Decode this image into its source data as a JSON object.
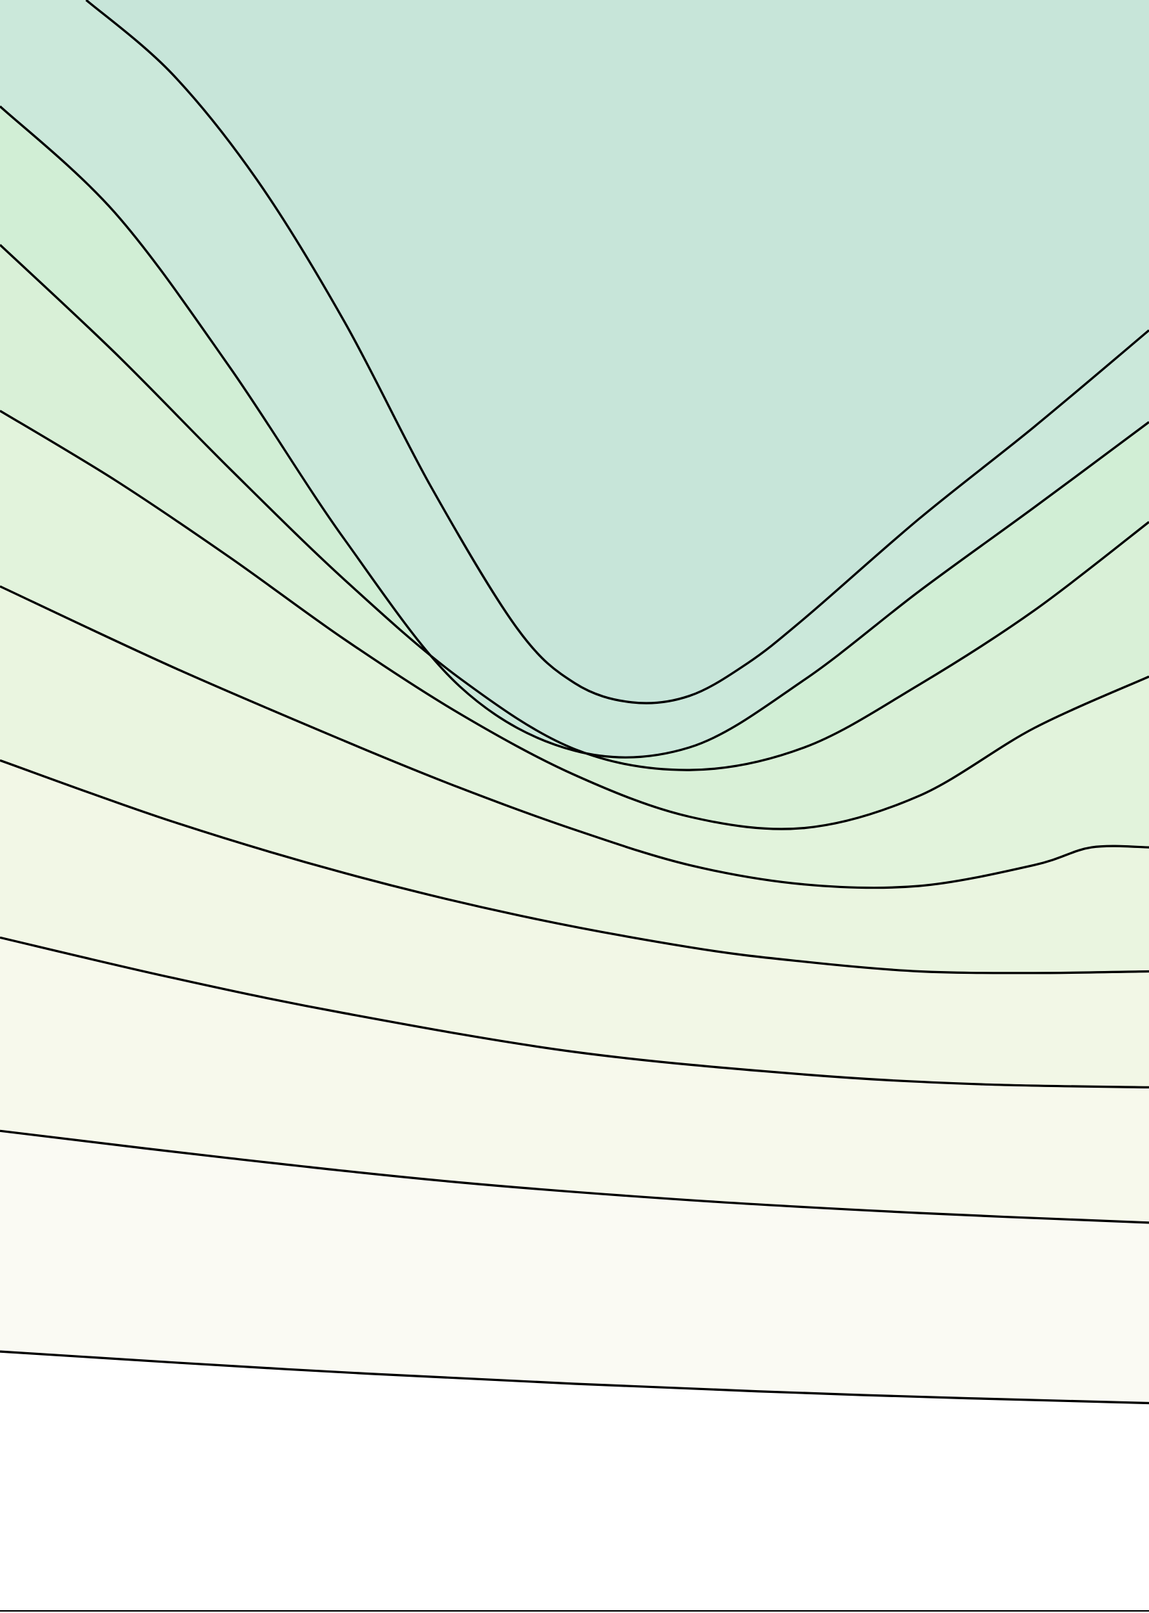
{
  "chart_data": {
    "type": "contour",
    "title": "",
    "xlabel": "",
    "ylabel": "",
    "grid": false,
    "legend": "none",
    "colormap": [
      "#fdfdfb",
      "#fafaf3",
      "#f7f9ec",
      "#f2f7e6",
      "#eaf5e0",
      "#e2f3dc",
      "#d9f0d7",
      "#d1eed5",
      "#cbe8da",
      "#c7e5d9"
    ],
    "line_color": "#000000",
    "x_domain": [
      0,
      1
    ],
    "y_domain": [
      0,
      1
    ],
    "levels": [
      {
        "band_color": "#fdfdfb",
        "points": [
          [
            0.0,
            0.161
          ],
          [
            0.25,
            0.15
          ],
          [
            0.5,
            0.141
          ],
          [
            0.75,
            0.134
          ],
          [
            1.0,
            0.129
          ]
        ]
      },
      {
        "band_color": "#fafaf3",
        "points": [
          [
            0.0,
            0.298
          ],
          [
            0.2,
            0.281
          ],
          [
            0.4,
            0.266
          ],
          [
            0.6,
            0.255
          ],
          [
            0.8,
            0.247
          ],
          [
            1.0,
            0.241
          ]
        ]
      },
      {
        "band_color": "#f7f9ec",
        "points": [
          [
            0.0,
            0.418
          ],
          [
            0.15,
            0.393
          ],
          [
            0.3,
            0.371
          ],
          [
            0.5,
            0.347
          ],
          [
            0.7,
            0.333
          ],
          [
            0.85,
            0.327
          ],
          [
            1.0,
            0.325
          ]
        ]
      },
      {
        "band_color": "#f2f7e6",
        "points": [
          [
            0.0,
            0.528
          ],
          [
            0.15,
            0.49
          ],
          [
            0.3,
            0.458
          ],
          [
            0.45,
            0.432
          ],
          [
            0.6,
            0.412
          ],
          [
            0.7,
            0.403
          ],
          [
            0.8,
            0.397
          ],
          [
            0.9,
            0.396
          ],
          [
            1.0,
            0.397
          ]
        ]
      },
      {
        "band_color": "#eaf5e0",
        "points": [
          [
            0.0,
            0.636
          ],
          [
            0.15,
            0.586
          ],
          [
            0.3,
            0.54
          ],
          [
            0.4,
            0.511
          ],
          [
            0.5,
            0.485
          ],
          [
            0.6,
            0.463
          ],
          [
            0.7,
            0.451
          ],
          [
            0.8,
            0.45
          ],
          [
            0.9,
            0.463
          ],
          [
            0.95,
            0.474
          ],
          [
            1.0,
            0.474
          ]
        ]
      },
      {
        "band_color": "#e2f3dc",
        "points": [
          [
            0.0,
            0.745
          ],
          [
            0.1,
            0.702
          ],
          [
            0.2,
            0.654
          ],
          [
            0.3,
            0.603
          ],
          [
            0.4,
            0.557
          ],
          [
            0.5,
            0.519
          ],
          [
            0.6,
            0.493
          ],
          [
            0.7,
            0.486
          ],
          [
            0.8,
            0.506
          ],
          [
            0.9,
            0.548
          ],
          [
            1.0,
            0.58
          ]
        ]
      },
      {
        "band_color": "#d9f0d7",
        "points": [
          [
            0.0,
            0.848
          ],
          [
            0.1,
            0.781
          ],
          [
            0.2,
            0.709
          ],
          [
            0.3,
            0.64
          ],
          [
            0.4,
            0.579
          ],
          [
            0.5,
            0.535
          ],
          [
            0.6,
            0.522
          ],
          [
            0.7,
            0.536
          ],
          [
            0.8,
            0.575
          ],
          [
            0.9,
            0.621
          ],
          [
            1.0,
            0.676
          ]
        ]
      },
      {
        "band_color": "#d1eed5",
        "points": [
          [
            0.0,
            0.934
          ],
          [
            0.1,
            0.868
          ],
          [
            0.2,
            0.772
          ],
          [
            0.3,
            0.665
          ],
          [
            0.4,
            0.574
          ],
          [
            0.5,
            0.534
          ],
          [
            0.6,
            0.536
          ],
          [
            0.7,
            0.578
          ],
          [
            0.8,
            0.633
          ],
          [
            0.9,
            0.685
          ],
          [
            1.0,
            0.738
          ]
        ]
      },
      {
        "band_color": "#cbe8da",
        "points": [
          [
            0.075,
            1.0
          ],
          [
            0.15,
            0.954
          ],
          [
            0.225,
            0.887
          ],
          [
            0.3,
            0.8
          ],
          [
            0.375,
            0.698
          ],
          [
            0.45,
            0.61
          ],
          [
            0.5,
            0.576
          ],
          [
            0.55,
            0.564
          ],
          [
            0.6,
            0.568
          ],
          [
            0.65,
            0.588
          ],
          [
            0.7,
            0.616
          ],
          [
            0.8,
            0.678
          ],
          [
            0.9,
            0.735
          ],
          [
            1.0,
            0.795
          ]
        ]
      }
    ],
    "top_band_color": "#c7e5d9"
  }
}
